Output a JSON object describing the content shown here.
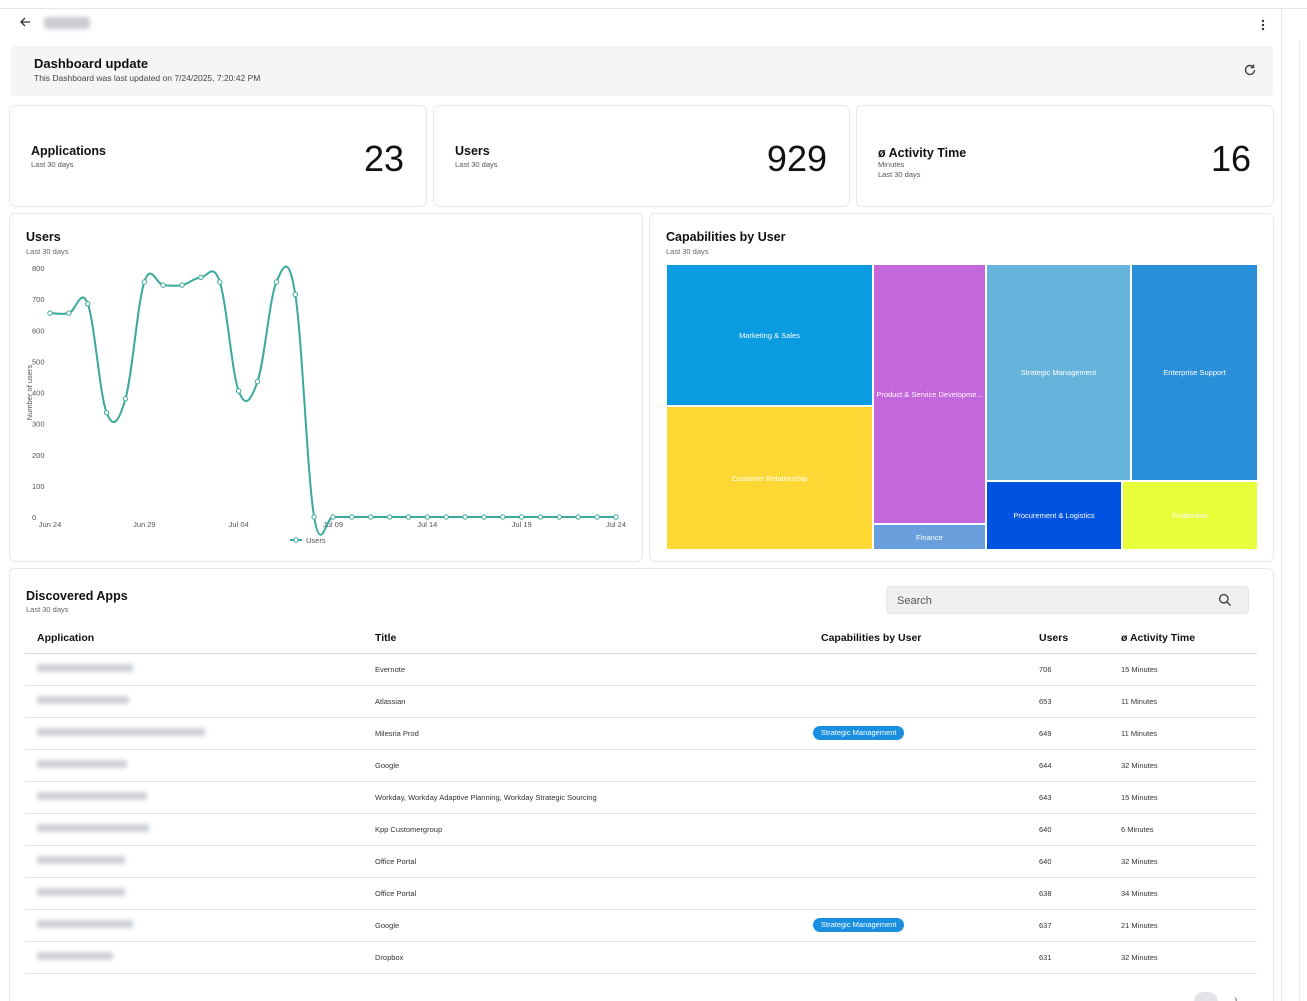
{
  "header": {
    "back_icon": "arrow-left-icon",
    "menu_icon": "kebab-icon"
  },
  "update": {
    "title": "Dashboard update",
    "subtitle": "This Dashboard was last updated on 7/24/2025, 7:20:42 PM"
  },
  "kpis": [
    {
      "label": "Applications",
      "sub": "Last 30 days",
      "value": "23"
    },
    {
      "label": "Users",
      "sub": "Last 30 days",
      "value": "929"
    },
    {
      "label": "ø Activity Time",
      "sub1": "Minutes",
      "sub2": "Last 30 days",
      "value": "16"
    }
  ],
  "users_chart": {
    "title": "Users",
    "subtitle": "Last 30 days",
    "ylabel": "Number of users",
    "legend": "Users",
    "color": "#3aa99a"
  },
  "chart_data": {
    "type": "line",
    "title": "Users",
    "ylabel": "Number of users",
    "ylim": [
      0,
      800
    ],
    "yticks": [
      0,
      100,
      200,
      300,
      400,
      500,
      600,
      700,
      800
    ],
    "x_tick_labels": [
      "Jun 24",
      "Jun 29",
      "Jul 04",
      "Jul 09",
      "Jul 14",
      "Jul 19",
      "Jul 24"
    ],
    "x": [
      "Jun 24",
      "Jun 25",
      "Jun 26",
      "Jun 27",
      "Jun 28",
      "Jun 29",
      "Jun 30",
      "Jul 01",
      "Jul 02",
      "Jul 03",
      "Jul 04",
      "Jul 05",
      "Jul 06",
      "Jul 07",
      "Jul 08",
      "Jul 09",
      "Jul 10",
      "Jul 11",
      "Jul 12",
      "Jul 13",
      "Jul 14",
      "Jul 15",
      "Jul 16",
      "Jul 17",
      "Jul 18",
      "Jul 19",
      "Jul 20",
      "Jul 21",
      "Jul 22",
      "Jul 23",
      "Jul 24"
    ],
    "series": [
      {
        "name": "Users",
        "values": [
          655,
          655,
          685,
          335,
          380,
          755,
          745,
          745,
          770,
          755,
          405,
          435,
          755,
          715,
          0,
          0,
          0,
          0,
          0,
          0,
          0,
          0,
          0,
          0,
          0,
          0,
          0,
          0,
          0,
          0,
          0
        ]
      }
    ],
    "legend_position": "bottom"
  },
  "treemap": {
    "title": "Capabilities by User",
    "subtitle": "Last 30 days",
    "cells": [
      {
        "label": "Marketing & Sales",
        "color": "#0b9be0"
      },
      {
        "label": "Customer Relationship",
        "color": "#fdd835"
      },
      {
        "label": "Product & Service Developme...",
        "color": "#c466dc"
      },
      {
        "label": "Finance",
        "color": "#6a9fdd"
      },
      {
        "label": "Strategic Management",
        "color": "#66b4dc"
      },
      {
        "label": "Enterprise Support",
        "color": "#2a8fd9"
      },
      {
        "label": "Procurement & Logistics",
        "color": "#0052e0"
      },
      {
        "label": "Production",
        "color": "#e6ff3a"
      }
    ]
  },
  "apps": {
    "title": "Discovered Apps",
    "subtitle": "Last 30 days",
    "search_placeholder": "Search",
    "columns": [
      "Application",
      "Title",
      "Capabilities by User",
      "Users",
      "ø Activity Time"
    ],
    "rows": [
      {
        "title": "Evernote",
        "capability": "",
        "users": "706",
        "time": "15 Minutes"
      },
      {
        "title": "Atlassian",
        "capability": "",
        "users": "653",
        "time": "11 Minutes"
      },
      {
        "title": "Milesria Prod",
        "capability": "Strategic Management",
        "users": "649",
        "time": "11 Minutes"
      },
      {
        "title": "Google",
        "capability": "",
        "users": "644",
        "time": "32 Minutes"
      },
      {
        "title": "Workday, Workday Adaptive Planning, Workday Strategic Sourcing",
        "capability": "",
        "users": "643",
        "time": "15 Minutes"
      },
      {
        "title": "Kpp Customergroup",
        "capability": "",
        "users": "640",
        "time": "6 Minutes"
      },
      {
        "title": "Office Portal",
        "capability": "",
        "users": "640",
        "time": "32 Minutes"
      },
      {
        "title": "Office Portal",
        "capability": "",
        "users": "638",
        "time": "34 Minutes"
      },
      {
        "title": "Google",
        "capability": "Strategic Management",
        "users": "637",
        "time": "21 Minutes"
      },
      {
        "title": "Dropbox",
        "capability": "",
        "users": "631",
        "time": "32 Minutes"
      }
    ]
  }
}
